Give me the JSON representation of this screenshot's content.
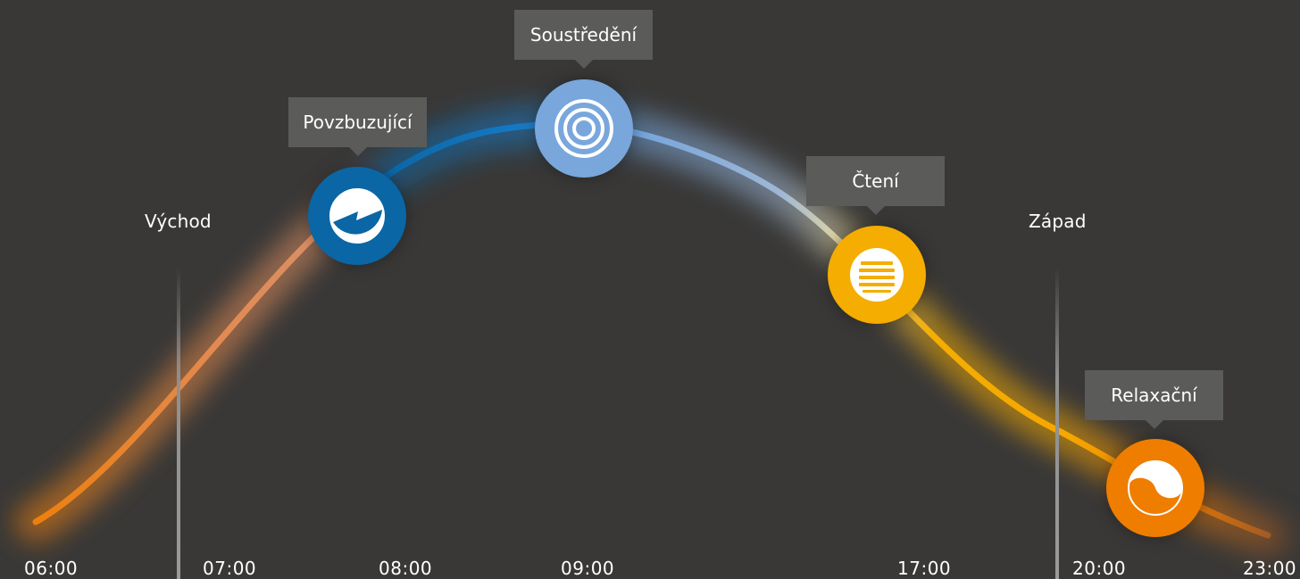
{
  "markers": {
    "sunrise": "Východ",
    "sunset": "Západ"
  },
  "times": [
    "06:00",
    "07:00",
    "08:00",
    "09:00",
    "17:00",
    "20:00",
    "23:00"
  ],
  "modes": [
    {
      "label": "Povzbuzující",
      "icon": "energize-icon",
      "color": "#0a66a5"
    },
    {
      "label": "Soustředění",
      "icon": "concentrate-icon",
      "color": "#79a7dc"
    },
    {
      "label": "Čtení",
      "icon": "read-icon",
      "color": "#f4ad00"
    },
    {
      "label": "Relaxační",
      "icon": "relax-icon",
      "color": "#ef7d00"
    }
  ]
}
